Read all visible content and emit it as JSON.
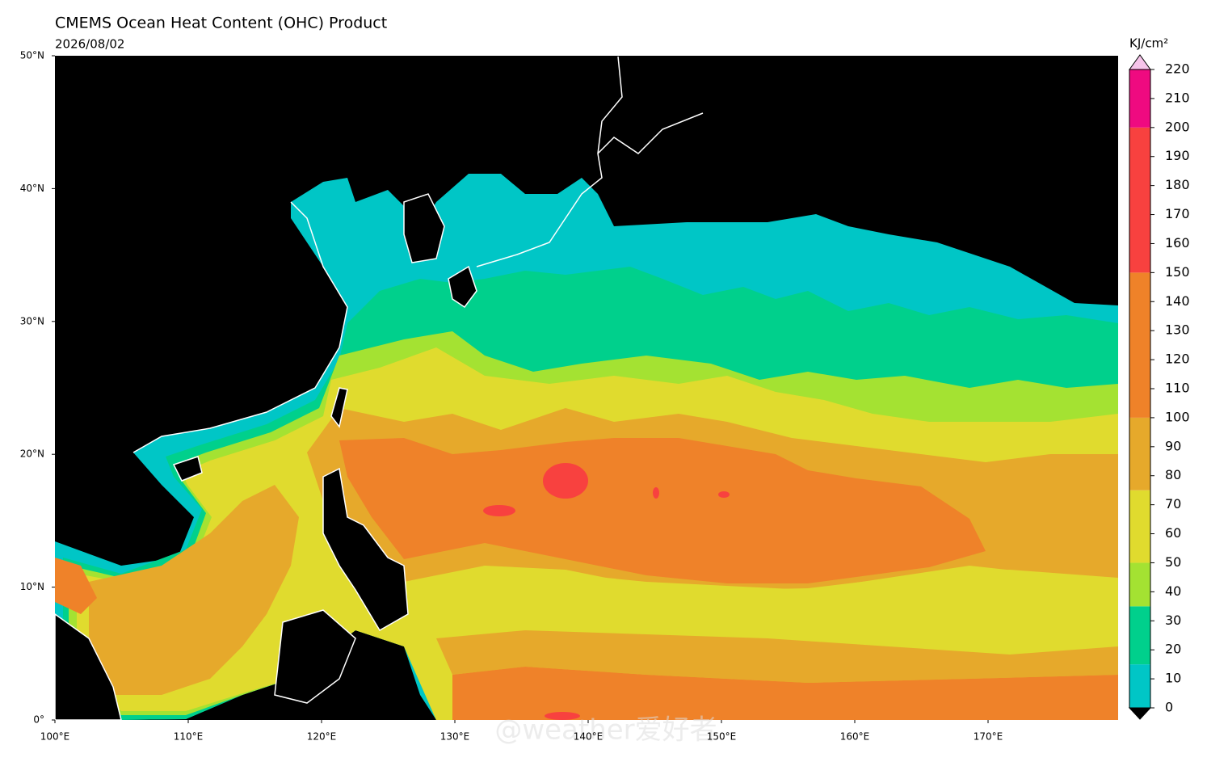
{
  "header": {
    "title": "CMEMS Ocean Heat Content (OHC) Product",
    "date": "2026/08/02"
  },
  "map": {
    "lon_range": [
      100,
      180
    ],
    "lat_range": [
      0,
      50
    ],
    "lon_ticks": [
      {
        "value": 100,
        "label": "100°E"
      },
      {
        "value": 110,
        "label": "110°E"
      },
      {
        "value": 120,
        "label": "120°E"
      },
      {
        "value": 130,
        "label": "130°E"
      },
      {
        "value": 140,
        "label": "140°E"
      },
      {
        "value": 150,
        "label": "150°E"
      },
      {
        "value": 160,
        "label": "160°E"
      },
      {
        "value": 170,
        "label": "170°E"
      }
    ],
    "lat_ticks": [
      {
        "value": 0,
        "label": "0°"
      },
      {
        "value": 10,
        "label": "10°N"
      },
      {
        "value": 20,
        "label": "20°N"
      },
      {
        "value": 30,
        "label": "30°N"
      },
      {
        "value": 40,
        "label": "40°N"
      },
      {
        "value": 50,
        "label": "50°N"
      }
    ]
  },
  "colorbar": {
    "unit": "KJ/cm²",
    "range": [
      0,
      220
    ],
    "bounds": [
      0,
      15,
      35,
      50,
      75,
      100,
      150,
      200,
      220
    ],
    "colors": [
      "#00c6c6",
      "#00d08c",
      "#a4e232",
      "#e0db2e",
      "#e6a92b",
      "#ef8229",
      "#f8413f",
      "#ef0a80"
    ],
    "over_color": "#f6c4ea",
    "under_color": "#000000",
    "ticks": [
      0,
      10,
      20,
      30,
      40,
      50,
      60,
      70,
      80,
      90,
      100,
      110,
      120,
      130,
      140,
      150,
      160,
      170,
      180,
      190,
      200,
      210,
      220
    ]
  },
  "watermark": "@weather爱好者"
}
